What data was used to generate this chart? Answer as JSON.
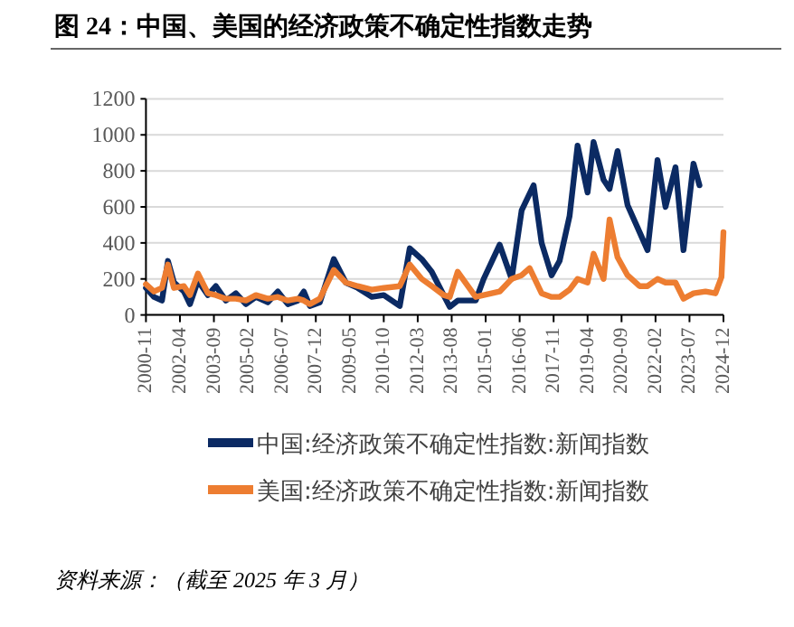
{
  "chart_data": {
    "type": "line",
    "title": "图 24：中国、美国的经济政策不确定性指数走势",
    "xlim": [
      "2000-11",
      "2024-12"
    ],
    "xticks": [
      "2000-11",
      "2002-04",
      "2003-09",
      "2005-02",
      "2006-07",
      "2007-12",
      "2009-05",
      "2010-10",
      "2012-03",
      "2013-08",
      "2015-01",
      "2016-06",
      "2017-11",
      "2019-04",
      "2020-09",
      "2022-02",
      "2023-07",
      "2024-12"
    ],
    "ylim": [
      0,
      1200
    ],
    "yticks": [
      0,
      200,
      400,
      600,
      800,
      1000,
      1200
    ],
    "grid": "y",
    "legend": "bottom",
    "series": [
      {
        "name": "中国:经济政策不确定性指数:新闻指数",
        "color": "#0b2a63",
        "x": [
          "2000-11",
          "2001-03",
          "2001-07",
          "2001-10",
          "2002-01",
          "2002-06",
          "2002-09",
          "2003-01",
          "2003-06",
          "2003-10",
          "2004-03",
          "2004-08",
          "2005-01",
          "2005-06",
          "2005-12",
          "2006-05",
          "2006-10",
          "2007-03",
          "2007-06",
          "2007-09",
          "2008-02",
          "2008-09",
          "2009-03",
          "2009-09",
          "2010-04",
          "2010-10",
          "2011-06",
          "2011-11",
          "2012-05",
          "2012-10",
          "2013-04",
          "2013-07",
          "2013-11",
          "2014-08",
          "2014-12",
          "2015-08",
          "2016-02",
          "2016-07",
          "2017-01",
          "2017-05",
          "2017-10",
          "2018-02",
          "2018-07",
          "2018-11",
          "2019-04",
          "2019-07",
          "2019-12",
          "2020-03",
          "2020-07",
          "2020-12",
          "2021-06",
          "2021-10",
          "2022-03",
          "2022-07",
          "2022-12",
          "2023-04",
          "2023-09",
          "2023-12"
        ],
        "values": [
          150,
          100,
          80,
          300,
          180,
          130,
          60,
          190,
          110,
          160,
          80,
          120,
          60,
          100,
          70,
          130,
          60,
          80,
          130,
          50,
          70,
          310,
          180,
          150,
          100,
          110,
          50,
          370,
          310,
          240,
          110,
          45,
          80,
          80,
          200,
          390,
          200,
          580,
          720,
          400,
          220,
          300,
          550,
          940,
          680,
          960,
          750,
          700,
          910,
          610,
          460,
          360,
          860,
          600,
          820,
          360,
          840,
          720
        ]
      },
      {
        "name": "美国:经济政策不确定性指数:新闻指数",
        "color": "#ed7d31",
        "x": [
          "2000-11",
          "2001-03",
          "2001-07",
          "2001-10",
          "2002-01",
          "2002-06",
          "2002-09",
          "2003-01",
          "2003-06",
          "2003-10",
          "2004-03",
          "2004-08",
          "2005-01",
          "2005-06",
          "2005-12",
          "2006-05",
          "2006-10",
          "2007-03",
          "2007-06",
          "2007-09",
          "2008-02",
          "2008-09",
          "2009-03",
          "2009-09",
          "2010-04",
          "2010-10",
          "2011-06",
          "2011-11",
          "2012-05",
          "2012-10",
          "2013-04",
          "2013-07",
          "2013-11",
          "2014-08",
          "2014-12",
          "2015-08",
          "2016-02",
          "2016-07",
          "2016-11",
          "2017-05",
          "2017-10",
          "2018-02",
          "2018-07",
          "2018-11",
          "2019-04",
          "2019-07",
          "2019-12",
          "2020-03",
          "2020-07",
          "2020-12",
          "2021-06",
          "2021-10",
          "2022-03",
          "2022-07",
          "2022-12",
          "2023-04",
          "2023-09",
          "2024-03",
          "2024-08",
          "2024-11",
          "2024-12"
        ],
        "values": [
          170,
          130,
          150,
          280,
          150,
          160,
          110,
          230,
          120,
          110,
          90,
          90,
          80,
          110,
          90,
          100,
          80,
          90,
          80,
          60,
          90,
          250,
          180,
          160,
          140,
          150,
          160,
          280,
          200,
          160,
          110,
          100,
          240,
          100,
          110,
          130,
          200,
          220,
          260,
          120,
          100,
          100,
          140,
          200,
          180,
          340,
          200,
          530,
          320,
          220,
          160,
          160,
          200,
          180,
          180,
          90,
          120,
          130,
          120,
          210,
          460
        ]
      }
    ],
    "annotations": [
      "资料来源：（截至 2025 年 3 月）"
    ]
  }
}
